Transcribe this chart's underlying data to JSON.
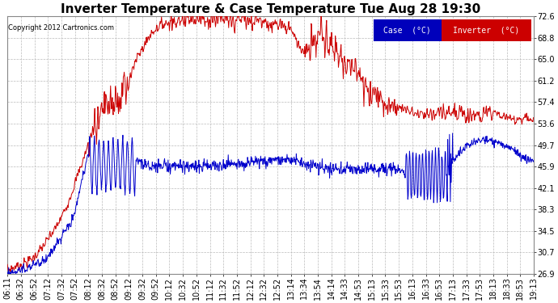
{
  "title": "Inverter Temperature & Case Temperature Tue Aug 28 19:30",
  "copyright": "Copyright 2012 Cartronics.com",
  "legend_case_label": "Case  (°C)",
  "legend_inverter_label": "Inverter  (°C)",
  "case_color": "#0000cc",
  "inverter_color": "#cc0000",
  "legend_case_bg": "#0000bb",
  "legend_inverter_bg": "#cc0000",
  "yticks": [
    26.9,
    30.7,
    34.5,
    38.3,
    42.1,
    45.9,
    49.7,
    53.6,
    57.4,
    61.2,
    65.0,
    68.8,
    72.6
  ],
  "ylim": [
    26.9,
    72.6
  ],
  "background_color": "#ffffff",
  "grid_color": "#bbbbbb",
  "title_fontsize": 11,
  "tick_fontsize": 7
}
